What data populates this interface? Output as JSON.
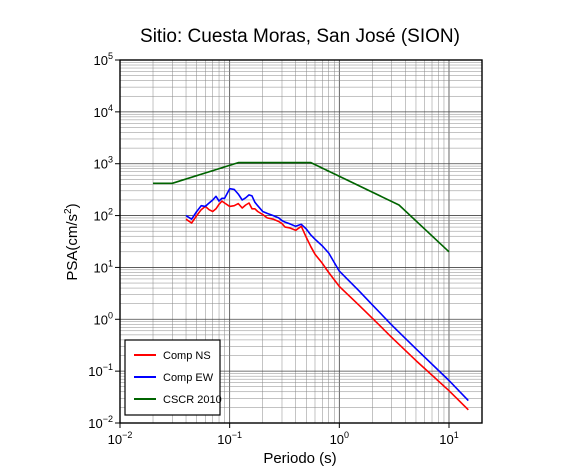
{
  "chart_data": {
    "type": "line",
    "title": "Sitio: Cuesta Moras, San José (SION)",
    "xlabel": "Periodo (s)",
    "ylabel_base": "PSA(cm/s",
    "ylabel_exp": "2",
    "ylabel_close": ")",
    "x_scale": "log",
    "y_scale": "log",
    "xlim": [
      0.01,
      20
    ],
    "ylim": [
      0.01,
      100000
    ],
    "grid": true,
    "legend_position": "bottom-left",
    "x_ticks": [
      {
        "value": 0.01,
        "base": "10",
        "exp": "−2"
      },
      {
        "value": 0.1,
        "base": "10",
        "exp": "−1"
      },
      {
        "value": 1,
        "base": "10",
        "exp": "0"
      },
      {
        "value": 10,
        "base": "10",
        "exp": "1"
      }
    ],
    "y_ticks": [
      {
        "value": 0.01,
        "base": "10",
        "exp": "−2"
      },
      {
        "value": 0.1,
        "base": "10",
        "exp": "−1"
      },
      {
        "value": 1,
        "base": "10",
        "exp": "0"
      },
      {
        "value": 10,
        "base": "10",
        "exp": "1"
      },
      {
        "value": 100,
        "base": "10",
        "exp": "2"
      },
      {
        "value": 1000,
        "base": "10",
        "exp": "3"
      },
      {
        "value": 10000,
        "base": "10",
        "exp": "4"
      },
      {
        "value": 100000,
        "base": "10",
        "exp": "5"
      }
    ],
    "series": [
      {
        "name": "Comp NS",
        "color": "#ff0000",
        "x": [
          0.04,
          0.045,
          0.05,
          0.055,
          0.06,
          0.065,
          0.07,
          0.075,
          0.08,
          0.085,
          0.09,
          0.1,
          0.11,
          0.12,
          0.13,
          0.14,
          0.15,
          0.16,
          0.17,
          0.18,
          0.2,
          0.22,
          0.25,
          0.28,
          0.3,
          0.32,
          0.35,
          0.4,
          0.45,
          0.5,
          0.55,
          0.6,
          0.7,
          0.8,
          1,
          1.5,
          2,
          3,
          5,
          10,
          15
        ],
        "y": [
          85,
          72,
          100,
          130,
          150,
          130,
          120,
          135,
          165,
          190,
          175,
          150,
          155,
          170,
          140,
          160,
          175,
          135,
          135,
          120,
          105,
          90,
          85,
          77,
          70,
          60,
          58,
          52,
          62,
          38,
          25,
          18,
          12,
          8,
          4.3,
          1.9,
          1.05,
          0.45,
          0.16,
          0.042,
          0.018
        ]
      },
      {
        "name": "Comp EW",
        "color": "#0000ff",
        "x": [
          0.04,
          0.045,
          0.05,
          0.055,
          0.06,
          0.065,
          0.07,
          0.075,
          0.08,
          0.085,
          0.09,
          0.1,
          0.11,
          0.12,
          0.13,
          0.14,
          0.15,
          0.16,
          0.17,
          0.18,
          0.2,
          0.22,
          0.25,
          0.28,
          0.3,
          0.32,
          0.35,
          0.4,
          0.45,
          0.5,
          0.55,
          0.6,
          0.7,
          0.8,
          1,
          1.5,
          2,
          3,
          5,
          10,
          15
        ],
        "y": [
          100,
          85,
          120,
          155,
          150,
          175,
          200,
          235,
          190,
          215,
          215,
          330,
          320,
          260,
          200,
          220,
          250,
          240,
          180,
          155,
          120,
          110,
          100,
          90,
          80,
          75,
          70,
          62,
          68,
          55,
          42,
          35,
          26,
          19,
          8.5,
          3.6,
          1.9,
          0.78,
          0.27,
          0.066,
          0.027
        ]
      },
      {
        "name": "CSCR 2010",
        "color": "#006400",
        "x": [
          0.02,
          0.03,
          0.12,
          0.55,
          3.5,
          10
        ],
        "y": [
          420,
          420,
          1050,
          1050,
          160,
          20
        ]
      }
    ]
  }
}
